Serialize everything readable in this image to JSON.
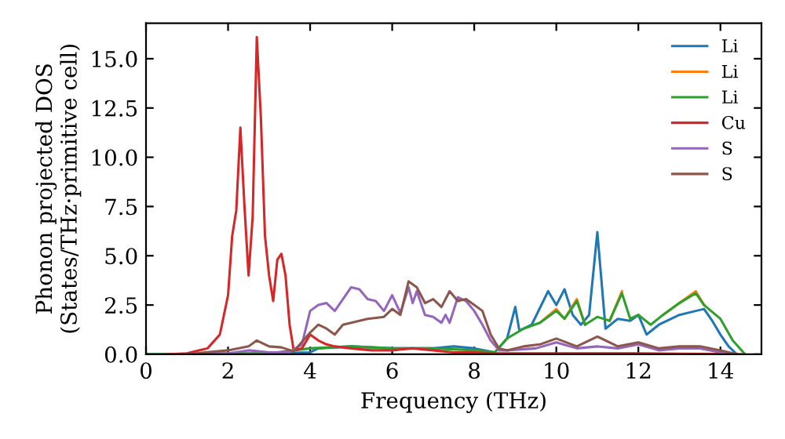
{
  "chart_data": {
    "type": "line",
    "xlabel": "Frequency (THz)",
    "ylabel": "Phonon projected DOS\n(States/THz·primitive cell)",
    "xlim": [
      0,
      15
    ],
    "ylim": [
      0,
      16.8
    ],
    "xticks": [
      0,
      2,
      4,
      6,
      8,
      10,
      12,
      14
    ],
    "yticks": [
      {
        "value": 0,
        "label": "0.0"
      },
      {
        "value": 2.5,
        "label": "2.5"
      },
      {
        "value": 5,
        "label": "5.0"
      },
      {
        "value": 7.5,
        "label": "7.5"
      },
      {
        "value": 10,
        "label": "10.0"
      },
      {
        "value": 12.5,
        "label": "12.5"
      },
      {
        "value": 15,
        "label": "15.0"
      }
    ],
    "grid": false,
    "legend": "top right",
    "line_style": "solid",
    "marker": "none",
    "series": [
      {
        "name": "Li",
        "color": "#1f77b4",
        "x": [
          0,
          3,
          4,
          4.2,
          5,
          6,
          7,
          7.5,
          8,
          8.5,
          8.8,
          9,
          9.1,
          9.4,
          9.8,
          10,
          10.2,
          10.4,
          10.6,
          10.8,
          11,
          11.2,
          11.5,
          11.8,
          12,
          12.2,
          12.5,
          13,
          13.4,
          13.6,
          13.8,
          14,
          14.2,
          14.4
        ],
        "values": [
          0,
          0.05,
          0.1,
          0.3,
          0.4,
          0.3,
          0.3,
          0.4,
          0.3,
          0.1,
          0.8,
          2.4,
          1.2,
          1.5,
          3.2,
          2.5,
          3.3,
          2.0,
          1.5,
          2.0,
          6.2,
          1.3,
          1.8,
          1.7,
          2.0,
          1.0,
          1.5,
          2.0,
          2.2,
          2.3,
          1.7,
          1.0,
          0.4,
          0
        ]
      },
      {
        "name": "Li",
        "color": "#ff7f0e",
        "x": [
          9.6,
          10,
          10.2,
          10.5,
          10.7,
          11,
          11.3,
          11.6,
          12,
          12.6,
          13,
          13.4,
          13.6
        ],
        "values": [
          1.6,
          2.3,
          1.8,
          2.8,
          1.5,
          null,
          1.7,
          3.2,
          null,
          2.0,
          2.6,
          3.2,
          2.5
        ]
      },
      {
        "name": "Li",
        "color": "#2ca02c",
        "x": [
          0,
          3,
          4,
          5,
          6,
          7,
          8,
          8.5,
          8.8,
          9.2,
          9.6,
          10,
          10.2,
          10.5,
          10.7,
          11,
          11.3,
          11.6,
          11.8,
          12,
          12.3,
          12.6,
          13,
          13.4,
          13.6,
          14,
          14.3,
          14.6
        ],
        "values": [
          0,
          0.05,
          0.3,
          0.4,
          0.3,
          0.3,
          0.2,
          0.1,
          0.8,
          1.3,
          1.6,
          2.2,
          1.8,
          2.7,
          1.5,
          1.9,
          1.7,
          3.1,
          1.8,
          2.0,
          1.5,
          2.0,
          2.6,
          3.1,
          2.5,
          1.8,
          0.7,
          0
        ]
      },
      {
        "name": "Cu",
        "color": "#d62728",
        "x": [
          0.5,
          1,
          1.5,
          1.8,
          2.0,
          2.1,
          2.2,
          2.3,
          2.4,
          2.5,
          2.6,
          2.7,
          2.8,
          2.9,
          3.0,
          3.1,
          3.2,
          3.3,
          3.4,
          3.5,
          3.6,
          3.8,
          4.0,
          4.2,
          4.4,
          4.6,
          5,
          5.5,
          6,
          6.5,
          7,
          7.5,
          8,
          8.5,
          9,
          10,
          11,
          12,
          13,
          14,
          14.5
        ],
        "values": [
          0,
          0.05,
          0.3,
          1,
          3,
          6,
          7.3,
          11.5,
          7.5,
          4,
          7,
          16.1,
          12,
          6,
          4,
          2.7,
          4.8,
          5.1,
          4,
          1.5,
          0.2,
          0.3,
          1.0,
          0.7,
          0.5,
          0.4,
          0.3,
          0.2,
          0.2,
          0.3,
          0.2,
          0.1,
          0.1,
          0.05,
          0.05,
          0.05,
          0.05,
          0.05,
          0.03,
          0.02,
          0
        ]
      },
      {
        "name": "S",
        "color": "#9467bd",
        "x": [
          1,
          2,
          2.5,
          3,
          3.5,
          3.8,
          4,
          4.2,
          4.4,
          4.6,
          4.8,
          5,
          5.2,
          5.4,
          5.6,
          5.8,
          6.0,
          6.2,
          6.4,
          6.5,
          6.6,
          6.8,
          7.0,
          7.2,
          7.3,
          7.4,
          7.6,
          7.8,
          8,
          8.2,
          8.4,
          8.6,
          8.8,
          9.5,
          10,
          10.5,
          11,
          11.5,
          12,
          12.5,
          13,
          13.5,
          14,
          14.3
        ],
        "values": [
          0,
          0.05,
          0.2,
          0.1,
          0.1,
          0.5,
          2.2,
          2.5,
          2.6,
          2.2,
          2.8,
          3.4,
          3.3,
          2.8,
          2.7,
          2.2,
          3.0,
          2.1,
          3.4,
          2.6,
          3.2,
          2.0,
          1.9,
          1.6,
          2.0,
          1.6,
          2.9,
          2.7,
          2.2,
          1.5,
          0.7,
          0.2,
          0.2,
          0.3,
          0.6,
          0.3,
          0.4,
          0.3,
          0.5,
          0.2,
          0.3,
          0.3,
          0.1,
          0
        ]
      },
      {
        "name": "S",
        "color": "#8c564b",
        "x": [
          1,
          2,
          2.5,
          2.7,
          3,
          3.3,
          3.6,
          4,
          4.2,
          4.4,
          4.6,
          4.8,
          5,
          5.4,
          5.8,
          6.0,
          6.2,
          6.4,
          6.6,
          6.8,
          7.0,
          7.2,
          7.4,
          7.6,
          7.8,
          8.0,
          8.2,
          8.4,
          8.6,
          8.8,
          9.2,
          9.6,
          10,
          10.5,
          11,
          11.5,
          12,
          12.5,
          13,
          13.5,
          14,
          14.4
        ],
        "values": [
          0,
          0.2,
          0.4,
          0.7,
          0.4,
          0.35,
          0.15,
          1.1,
          1.5,
          1.3,
          1.0,
          1.5,
          1.6,
          1.8,
          1.9,
          2.3,
          2.0,
          3.7,
          3.4,
          2.6,
          2.8,
          2.4,
          3.2,
          2.7,
          2.8,
          2.5,
          2.2,
          1.0,
          0.3,
          0.2,
          0.4,
          0.5,
          0.8,
          0.4,
          0.9,
          0.4,
          0.6,
          0.3,
          0.4,
          0.4,
          0.2,
          0
        ]
      }
    ]
  }
}
